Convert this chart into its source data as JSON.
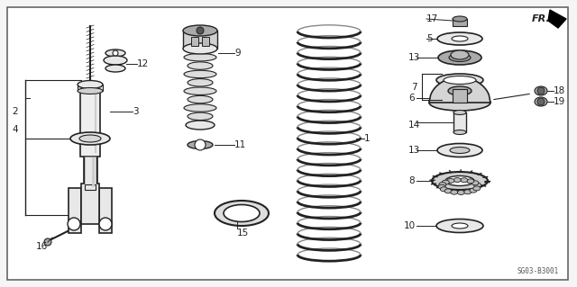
{
  "background_color": "#f5f5f5",
  "border_color": "#666666",
  "line_color": "#222222",
  "part_fill": "#e8e8e8",
  "part_dark": "#aaaaaa",
  "diagram_code": "SG03-B3001"
}
